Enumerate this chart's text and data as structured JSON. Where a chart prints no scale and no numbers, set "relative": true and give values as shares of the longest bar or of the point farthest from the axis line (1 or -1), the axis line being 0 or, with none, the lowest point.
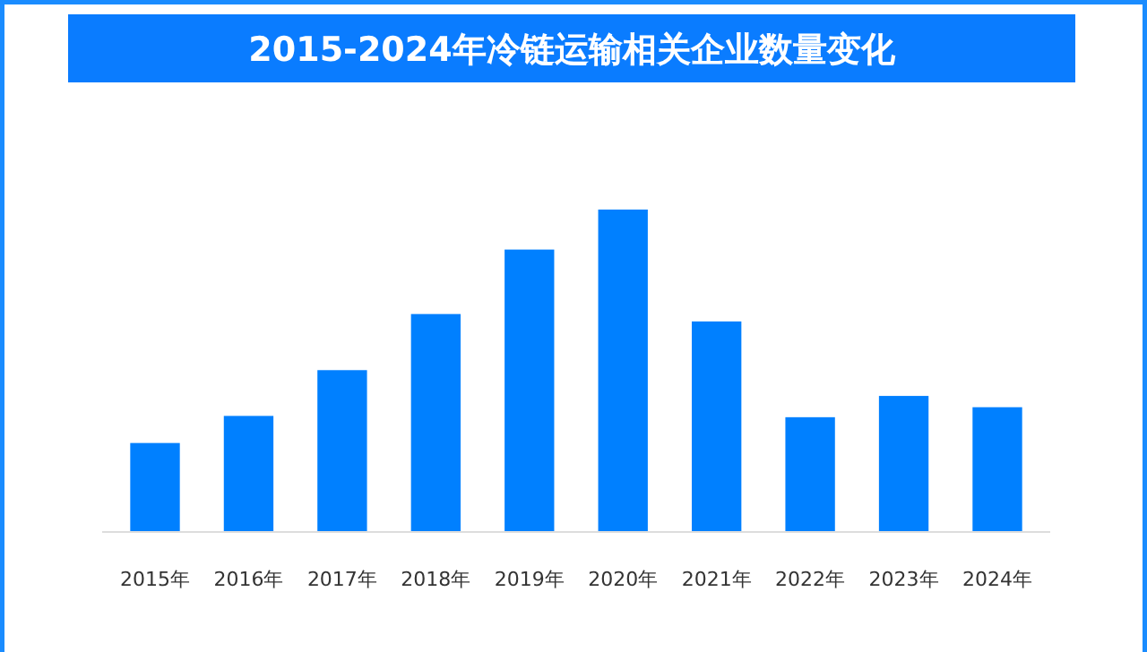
{
  "chart_data": {
    "type": "bar",
    "title": "2015-2024年冷链运输相关企业数量变化",
    "categories": [
      "2015年",
      "2016年",
      "2017年",
      "2018年",
      "2019年",
      "2020年",
      "2021年",
      "2022年",
      "2023年",
      "2024年"
    ],
    "values": [
      0.276,
      0.36,
      0.502,
      0.676,
      0.876,
      1,
      0.653,
      0.356,
      0.422,
      0.387
    ],
    "color": "#0080ff",
    "relative": true
  }
}
